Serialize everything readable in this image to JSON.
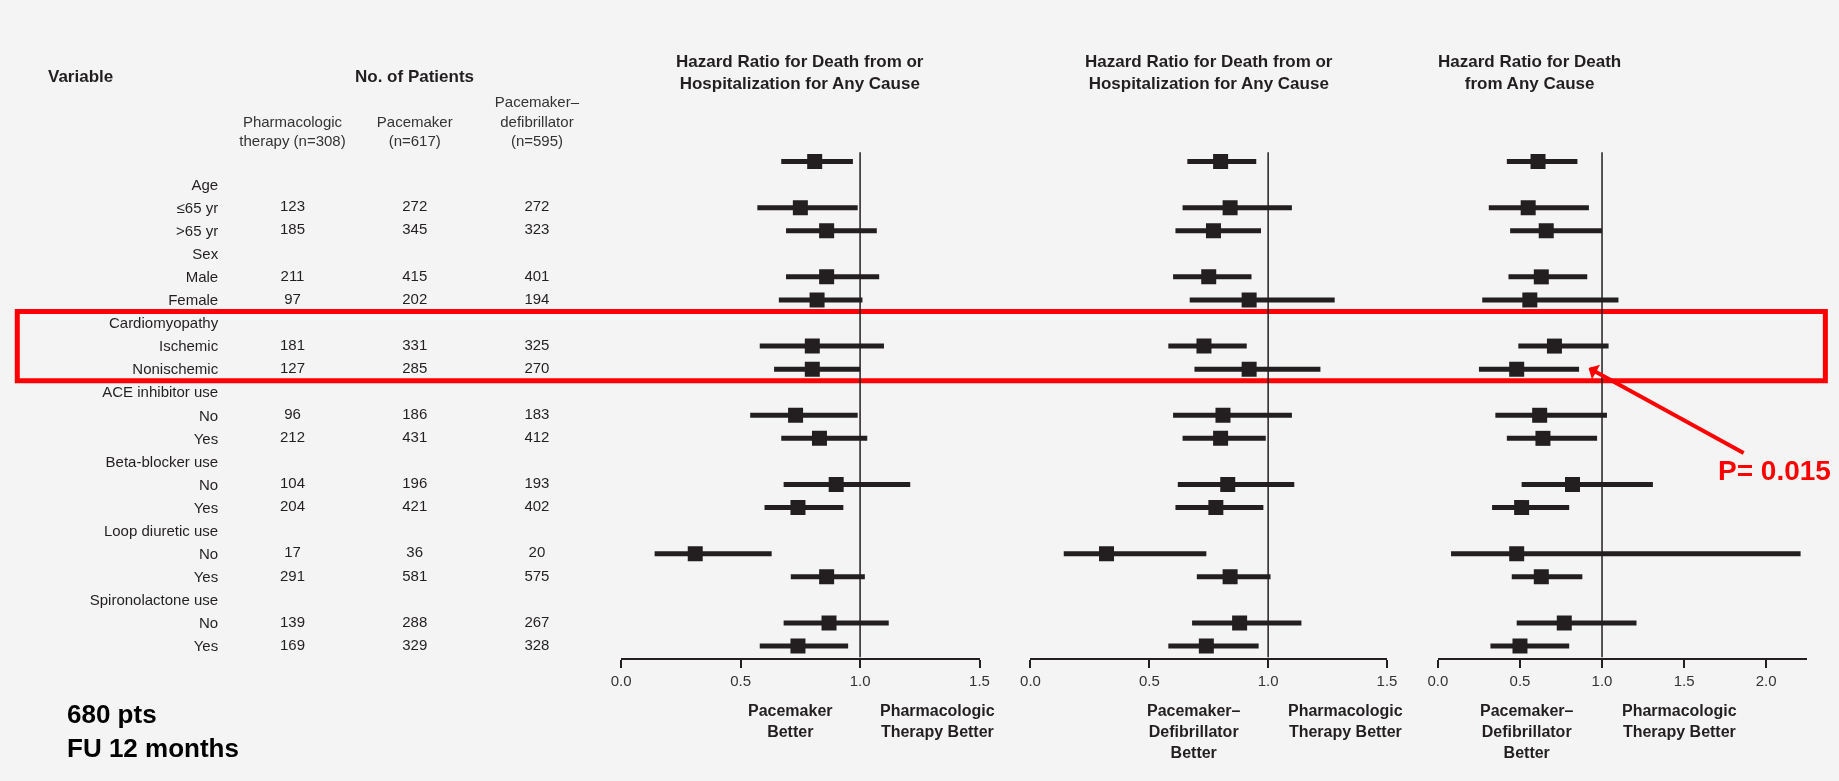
{
  "chart_data": [
    {
      "type": "other",
      "title": "No. of Patients",
      "ylabel": "Variable",
      "data_labels": true,
      "categories": [
        "Age",
        "≤65 yr",
        ">65 yr",
        "Sex",
        "Male",
        "Female",
        "Cardiomyopathy",
        "Ischemic",
        "Nonischemic",
        "ACE inhibitor use",
        "No",
        "Yes",
        "Beta-blocker use",
        "No",
        "Yes",
        "Loop diuretic use",
        "No",
        "Yes",
        "Spironolactone use",
        "No",
        "Yes"
      ],
      "series": [
        {
          "name": "Pharmacologic\ntherapy (n=308)",
          "values": [
            null,
            123,
            185,
            null,
            211,
            97,
            null,
            181,
            127,
            null,
            96,
            212,
            null,
            104,
            204,
            null,
            17,
            291,
            null,
            139,
            169
          ]
        },
        {
          "name": "Pacemaker\n(n=617)",
          "values": [
            null,
            272,
            345,
            null,
            415,
            202,
            null,
            331,
            285,
            null,
            186,
            431,
            null,
            196,
            421,
            null,
            36,
            581,
            null,
            288,
            329
          ]
        },
        {
          "name": "Pacemaker–\ndefibrillator\n(n=595)",
          "values": [
            null,
            272,
            323,
            null,
            401,
            194,
            null,
            325,
            270,
            null,
            183,
            412,
            null,
            193,
            402,
            null,
            20,
            575,
            null,
            267,
            328
          ]
        }
      ],
      "annotations": [
        "680 pts\nFU 12 months"
      ]
    },
    {
      "type": "scatter",
      "orientation": "horizontal",
      "title": "Hazard Ratio for Death from or\nHospitalization for Any Cause",
      "marker": "square",
      "color": "#231f20",
      "tick_labels": "x",
      "categories": [
        null,
        null,
        null,
        null,
        null,
        null,
        null,
        null,
        null,
        null,
        null,
        null,
        null,
        null,
        null,
        null,
        null,
        null,
        null,
        null,
        null,
        null
      ],
      "xticks": [
        {
          "value": 0,
          "label": "0.0"
        },
        {
          "value": 0.5,
          "label": "0.5"
        },
        {
          "value": 1,
          "label": "1.0"
        },
        {
          "value": 1.5,
          "label": "1.5"
        }
      ],
      "values": [
        0.81,
        null,
        0.75,
        0.86,
        null,
        0.86,
        0.82,
        null,
        0.8,
        0.8,
        null,
        0.73,
        0.83,
        null,
        0.9,
        0.74,
        null,
        0.31,
        0.86,
        null,
        0.87,
        0.74
      ],
      "errors": [
        [
          0.67,
          0.97
        ],
        null,
        [
          0.57,
          0.99
        ],
        [
          0.69,
          1.07
        ],
        null,
        [
          0.69,
          1.08
        ],
        [
          0.66,
          1.01
        ],
        null,
        [
          0.58,
          1.1
        ],
        [
          0.64,
          1.0
        ],
        null,
        [
          0.54,
          0.99
        ],
        [
          0.67,
          1.03
        ],
        null,
        [
          0.68,
          1.21
        ],
        [
          0.6,
          0.93
        ],
        null,
        [
          0.14,
          0.63
        ],
        [
          0.71,
          1.02
        ],
        null,
        [
          0.68,
          1.12
        ],
        [
          0.58,
          0.95
        ]
      ],
      "xlim": [
        0,
        1.5
      ],
      "ref_lines": [
        {
          "axis": "x",
          "value": 1
        }
      ],
      "annotations": [
        "Pacemaker\nBetter",
        "Pharmacologic\nTherapy Better"
      ]
    },
    {
      "type": "scatter",
      "orientation": "horizontal",
      "title": "Hazard Ratio for Death from or\nHospitalization for Any Cause",
      "marker": "square",
      "color": "#231f20",
      "tick_labels": "x",
      "categories": [
        null,
        null,
        null,
        null,
        null,
        null,
        null,
        null,
        null,
        null,
        null,
        null,
        null,
        null,
        null,
        null,
        null,
        null,
        null,
        null,
        null,
        null
      ],
      "values": [
        0.8,
        null,
        0.84,
        0.77,
        null,
        0.75,
        0.92,
        null,
        0.73,
        0.92,
        null,
        0.81,
        0.8,
        null,
        0.83,
        0.78,
        null,
        0.32,
        0.84,
        null,
        0.88,
        0.74
      ],
      "errors": [
        [
          0.66,
          0.95
        ],
        null,
        [
          0.64,
          1.1
        ],
        [
          0.61,
          0.97
        ],
        null,
        [
          0.6,
          0.93
        ],
        [
          0.67,
          1.28
        ],
        null,
        [
          0.58,
          0.91
        ],
        [
          0.69,
          1.22
        ],
        null,
        [
          0.6,
          1.1
        ],
        [
          0.64,
          0.99
        ],
        null,
        [
          0.62,
          1.11
        ],
        [
          0.61,
          0.98
        ],
        null,
        [
          0.14,
          0.74
        ],
        [
          0.7,
          1.01
        ],
        null,
        [
          0.68,
          1.14
        ],
        [
          0.58,
          0.96
        ]
      ],
      "xlim": [
        0,
        1.5
      ],
      "xticks": [
        {
          "value": 0,
          "label": "0.0"
        },
        {
          "value": 0.5,
          "label": "0.5"
        },
        {
          "value": 1,
          "label": "1.0"
        },
        {
          "value": 1.5,
          "label": "1.5"
        }
      ],
      "ref_lines": [
        {
          "axis": "x",
          "value": 1
        }
      ],
      "annotations": [
        "Pacemaker–\nDefibrillator\nBetter",
        "Pharmacologic\nTherapy Better"
      ]
    },
    {
      "type": "scatter",
      "orientation": "horizontal",
      "title": "Hazard Ratio for Death\nfrom Any Cause",
      "marker": "square",
      "color": "#231f20",
      "tick_labels": "x",
      "categories": [
        null,
        null,
        null,
        null,
        null,
        null,
        null,
        null,
        null,
        null,
        null,
        null,
        null,
        null,
        null,
        null,
        null,
        null,
        null,
        null,
        null,
        null
      ],
      "values": [
        0.61,
        null,
        0.55,
        0.66,
        null,
        0.63,
        0.56,
        null,
        0.71,
        0.48,
        null,
        0.62,
        0.64,
        null,
        0.82,
        0.51,
        null,
        0.48,
        0.63,
        null,
        0.77,
        0.5
      ],
      "errors": [
        [
          0.42,
          0.85
        ],
        null,
        [
          0.31,
          0.92
        ],
        [
          0.44,
          1.0
        ],
        null,
        [
          0.43,
          0.91
        ],
        [
          0.27,
          1.1
        ],
        null,
        [
          0.49,
          1.04
        ],
        [
          0.25,
          0.86
        ],
        null,
        [
          0.35,
          1.03
        ],
        [
          0.42,
          0.97
        ],
        null,
        [
          0.51,
          1.31
        ],
        [
          0.33,
          0.8
        ],
        null,
        [
          0.08,
          2.21
        ],
        [
          0.45,
          0.88
        ],
        null,
        [
          0.48,
          1.21
        ],
        [
          0.32,
          0.8
        ]
      ],
      "xlim": [
        0,
        2.25
      ],
      "xticks": [
        {
          "value": 0,
          "label": "0.0"
        },
        {
          "value": 0.5,
          "label": "0.5"
        },
        {
          "value": 1,
          "label": "1.0"
        },
        {
          "value": 1.5,
          "label": "1.5"
        },
        {
          "value": 2,
          "label": "2.0"
        }
      ],
      "ref_lines": [
        {
          "axis": "x",
          "value": 1
        }
      ],
      "annotations": [
        "Pacemaker–\nDefibrillator\nBetter",
        "Pharmacologic\nTherapy Better",
        "P= 0.015"
      ]
    }
  ]
}
